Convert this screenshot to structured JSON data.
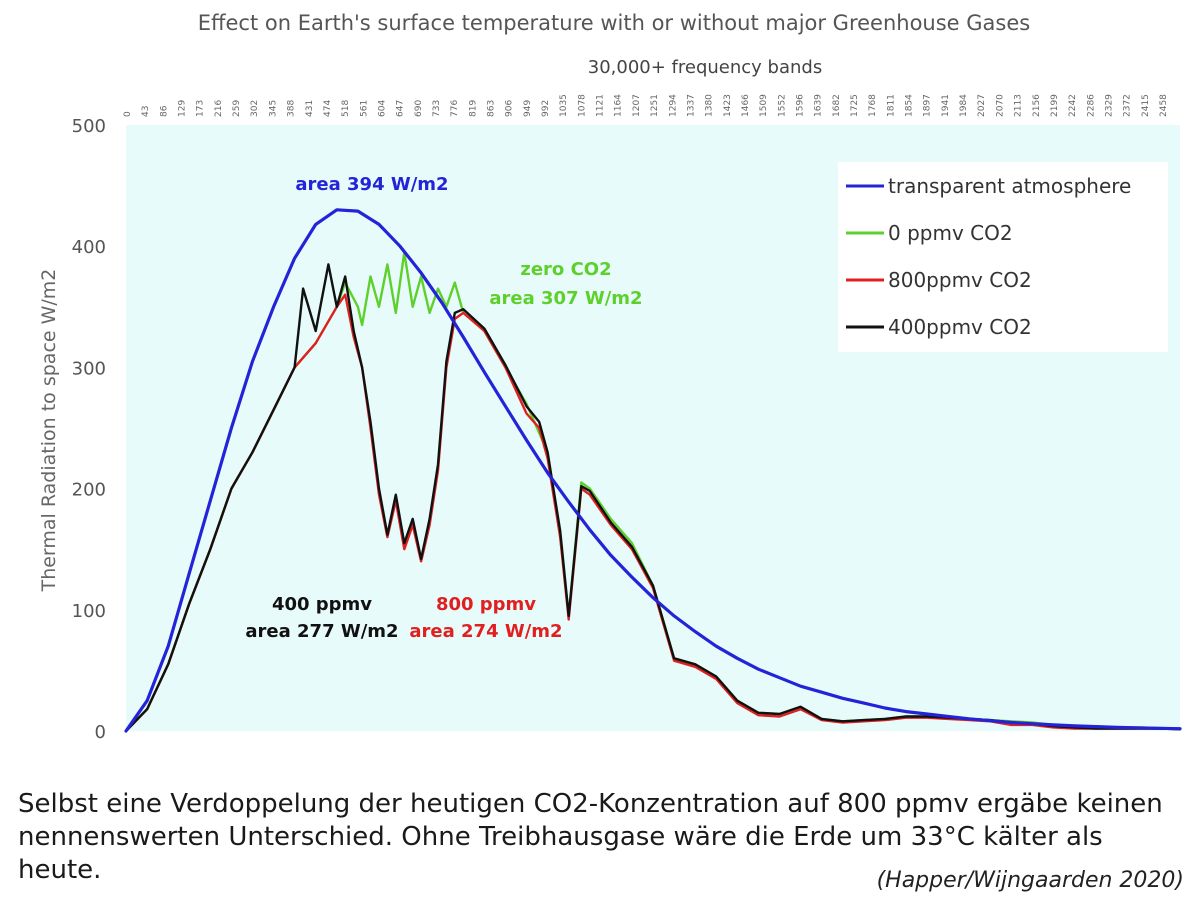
{
  "chart_data": {
    "type": "line",
    "title": "Effect on Earth's surface temperature with or without major Greenhouse Gases",
    "subtitle": "30,000+ frequency bands",
    "ylabel": "Thermal Radiation to space  W/m2",
    "xlabel": "",
    "xlim": [
      0,
      2500
    ],
    "ylim": [
      0,
      500
    ],
    "y_ticks": [
      0,
      100,
      200,
      300,
      400,
      500
    ],
    "x_ticks": [
      "0",
      "43",
      "86",
      "129",
      "173",
      "216",
      "259",
      "302",
      "345",
      "388",
      "431",
      "474",
      "518",
      "561",
      "604",
      "647",
      "690",
      "733",
      "776",
      "819",
      "863",
      "906",
      "949",
      "992",
      "1035",
      "1078",
      "1121",
      "1164",
      "1207",
      "1251",
      "1294",
      "1337",
      "1380",
      "1423",
      "1466",
      "1509",
      "1552",
      "1596",
      "1639",
      "1682",
      "1725",
      "1768",
      "1811",
      "1854",
      "1897",
      "1941",
      "1984",
      "2027",
      "2070",
      "2113",
      "2156",
      "2199",
      "2242",
      "2286",
      "2329",
      "2372",
      "2415",
      "2458"
    ],
    "series": [
      {
        "name": "transparent atmosphere",
        "color": "#2323d8",
        "x": [
          0,
          50,
          100,
          150,
          200,
          250,
          300,
          350,
          400,
          450,
          500,
          550,
          600,
          650,
          700,
          750,
          800,
          850,
          900,
          950,
          1000,
          1050,
          1100,
          1150,
          1200,
          1250,
          1300,
          1350,
          1400,
          1450,
          1500,
          1550,
          1600,
          1650,
          1700,
          1750,
          1800,
          1850,
          1900,
          1950,
          2000,
          2050,
          2100,
          2150,
          2200,
          2250,
          2300,
          2350,
          2400,
          2450,
          2500
        ],
        "y": [
          0,
          25,
          70,
          130,
          190,
          250,
          305,
          350,
          390,
          418,
          430,
          429,
          418,
          400,
          378,
          353,
          325,
          296,
          268,
          240,
          213,
          189,
          166,
          145,
          127,
          110,
          95,
          82,
          70,
          60,
          51,
          44,
          37,
          32,
          27,
          23,
          19,
          16,
          14,
          12,
          10,
          8.5,
          7,
          6,
          5,
          4.2,
          3.6,
          3,
          2.6,
          2.2,
          1.9
        ]
      },
      {
        "name": "0 ppmv CO2",
        "color": "#5ed02c",
        "x": [
          0,
          50,
          100,
          150,
          200,
          250,
          300,
          350,
          400,
          450,
          500,
          520,
          550,
          560,
          580,
          600,
          620,
          640,
          660,
          680,
          700,
          720,
          740,
          760,
          780,
          800,
          850,
          900,
          950,
          1000,
          1030,
          1050,
          1080,
          1100,
          1150,
          1200,
          1250,
          1300,
          1350,
          1400,
          1450,
          1500,
          1550,
          1600,
          1650,
          1700,
          1750,
          1800,
          1850,
          1900,
          1950,
          2000,
          2050,
          2100,
          2150,
          2200,
          2250,
          2300,
          2350,
          2400,
          2450,
          2500
        ],
        "y": [
          0,
          18,
          55,
          105,
          150,
          200,
          230,
          265,
          300,
          320,
          350,
          370,
          350,
          335,
          375,
          350,
          385,
          345,
          395,
          350,
          375,
          345,
          365,
          350,
          370,
          345,
          330,
          300,
          270,
          230,
          160,
          95,
          205,
          200,
          175,
          155,
          120,
          60,
          55,
          45,
          25,
          15,
          14,
          20,
          10,
          8,
          9,
          10,
          12,
          12,
          11,
          10,
          9,
          8,
          7,
          5,
          4,
          4,
          3,
          3,
          2.5,
          2
        ]
      },
      {
        "name": "800ppmv CO2",
        "color": "#e02020",
        "x": [
          0,
          50,
          100,
          150,
          200,
          250,
          300,
          350,
          400,
          450,
          500,
          520,
          540,
          560,
          580,
          600,
          620,
          640,
          660,
          680,
          700,
          720,
          740,
          760,
          780,
          800,
          850,
          900,
          950,
          980,
          1000,
          1030,
          1050,
          1080,
          1100,
          1150,
          1200,
          1250,
          1300,
          1350,
          1400,
          1450,
          1500,
          1550,
          1600,
          1650,
          1700,
          1750,
          1800,
          1850,
          1900,
          1950,
          2000,
          2050,
          2100,
          2150,
          2200,
          2250,
          2300,
          2350,
          2400,
          2450,
          2500
        ],
        "y": [
          0,
          18,
          55,
          105,
          150,
          200,
          230,
          265,
          300,
          320,
          350,
          360,
          325,
          300,
          250,
          195,
          160,
          190,
          150,
          170,
          140,
          170,
          215,
          300,
          340,
          345,
          330,
          300,
          262,
          250,
          225,
          160,
          92,
          200,
          195,
          170,
          150,
          118,
          58,
          53,
          43,
          23,
          13,
          12,
          18,
          9,
          7,
          8,
          9,
          11,
          11,
          10,
          9,
          8,
          5,
          5,
          3,
          2,
          2,
          2,
          2,
          2,
          1.5
        ]
      },
      {
        "name": "400ppmv CO2",
        "color": "#111111",
        "x": [
          0,
          50,
          100,
          150,
          200,
          250,
          300,
          350,
          400,
          420,
          450,
          480,
          500,
          520,
          540,
          560,
          580,
          600,
          620,
          640,
          660,
          680,
          700,
          720,
          740,
          760,
          780,
          800,
          850,
          900,
          950,
          980,
          1000,
          1030,
          1050,
          1080,
          1100,
          1150,
          1200,
          1250,
          1300,
          1350,
          1400,
          1450,
          1500,
          1550,
          1600,
          1650,
          1700,
          1750,
          1800,
          1850,
          1900,
          1950,
          2000,
          2050,
          2100,
          2150,
          2200,
          2250,
          2300,
          2350,
          2400,
          2450,
          2500
        ],
        "y": [
          0,
          18,
          55,
          105,
          150,
          200,
          230,
          265,
          300,
          365,
          330,
          385,
          350,
          375,
          330,
          300,
          255,
          200,
          162,
          195,
          155,
          175,
          142,
          175,
          220,
          305,
          345,
          348,
          332,
          302,
          268,
          255,
          230,
          165,
          95,
          202,
          198,
          172,
          152,
          120,
          60,
          55,
          45,
          25,
          15,
          14,
          20,
          10,
          8,
          9,
          10,
          12,
          12,
          11,
          10,
          9,
          7,
          6,
          4,
          3,
          2,
          2,
          2,
          2,
          1.5
        ]
      }
    ],
    "annotations": [
      {
        "text": "area 394 W/m2",
        "color": "#2323d8"
      },
      {
        "text": "zero CO2",
        "color": "#5ed02c"
      },
      {
        "text": "area 307 W/m2",
        "color": "#5ed02c"
      },
      {
        "text": "400 ppmv",
        "color": "#111111"
      },
      {
        "text": "area 277 W/m2",
        "color": "#111111"
      },
      {
        "text": "800 ppmv",
        "color": "#e02020"
      },
      {
        "text": "area 274 W/m2",
        "color": "#e02020"
      }
    ],
    "legend_position": "top-right",
    "plot_background": "#e8fbfb"
  },
  "caption": "Selbst eine Verdoppelung der heutigen CO2-Konzentration auf 800 ppmv ergäbe keinen nennenswerten Unterschied. Ohne Treibhausgase wäre die Erde um 33°C kälter als heute.",
  "credit": "(Happer/Wijngaarden 2020)"
}
